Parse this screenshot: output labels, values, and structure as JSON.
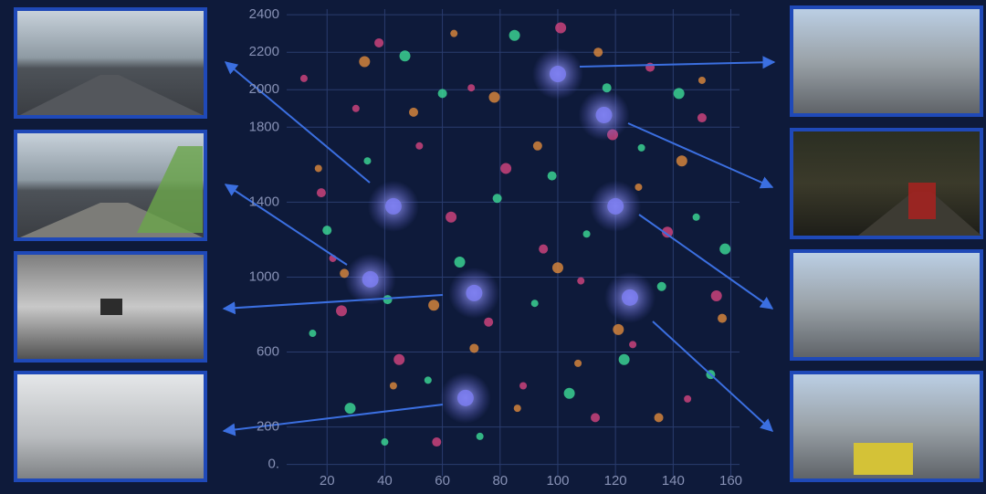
{
  "chart_data": {
    "type": "scatter",
    "xlim": [
      6,
      163
    ],
    "ylim": [
      -60,
      2430
    ],
    "xticks": [
      20,
      40,
      60,
      80,
      100,
      120,
      140,
      160
    ],
    "yticks": [
      {
        "value": 0,
        "label": "0."
      },
      200,
      600,
      1000,
      1400,
      1800,
      2000,
      2200,
      2400
    ],
    "grid": true,
    "series": [
      {
        "color": "#d6457f",
        "x": [
          12,
          18,
          25,
          30,
          38,
          45,
          52,
          58,
          63,
          70,
          76,
          82,
          88,
          95,
          101,
          108,
          113,
          119,
          126,
          132,
          138,
          145,
          150,
          155,
          22
        ],
        "values": [
          2060,
          1450,
          820,
          1900,
          2250,
          560,
          1700,
          120,
          1320,
          2010,
          760,
          1580,
          420,
          1150,
          2330,
          980,
          250,
          1760,
          640,
          2120,
          1240,
          350,
          1850,
          900,
          1100
        ]
      },
      {
        "color": "#3ddc97",
        "x": [
          15,
          20,
          28,
          34,
          41,
          47,
          55,
          60,
          66,
          73,
          79,
          85,
          92,
          98,
          104,
          110,
          117,
          123,
          129,
          136,
          142,
          148,
          153,
          158,
          40
        ],
        "values": [
          700,
          1250,
          300,
          1620,
          880,
          2180,
          450,
          1980,
          1080,
          150,
          1420,
          2290,
          860,
          1540,
          380,
          1230,
          2010,
          560,
          1690,
          950,
          1980,
          1320,
          480,
          1150,
          120
        ]
      },
      {
        "color": "#e08a3c",
        "x": [
          17,
          26,
          33,
          43,
          50,
          57,
          64,
          71,
          78,
          86,
          93,
          100,
          107,
          114,
          121,
          128,
          135,
          143,
          150,
          157
        ],
        "values": [
          1580,
          1020,
          2150,
          420,
          1880,
          850,
          2300,
          620,
          1960,
          300,
          1700,
          1050,
          540,
          2200,
          720,
          1480,
          250,
          1620,
          2050,
          780
        ]
      },
      {
        "color": "#7b7cf0",
        "x": [
          43,
          100,
          116,
          120,
          71,
          35,
          125,
          68
        ],
        "values": [
          1378,
          2084,
          1865,
          1378,
          915,
          988,
          891,
          355
        ]
      }
    ]
  }
}
